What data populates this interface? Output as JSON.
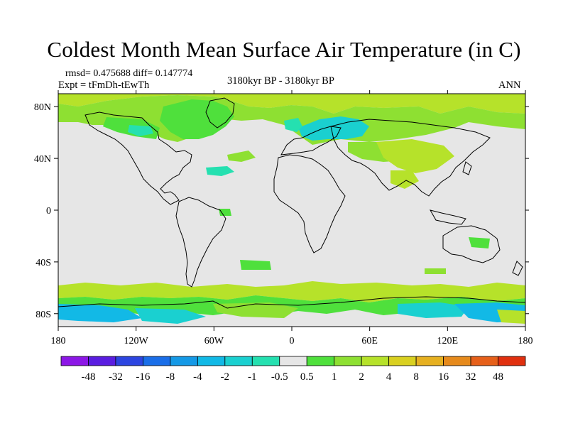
{
  "title": "Coldest Month Mean Surface Air Temperature (in C)",
  "stats": {
    "rmsd_label": "rmsd= 0.475688 diff= 0.147774"
  },
  "expt_label": "Expt = tFmDh-tEwTh",
  "period_label": "3180kyr BP - 3180kyr BP",
  "season_label": "ANN",
  "map": {
    "lon_range": [
      -180,
      180
    ],
    "lat_range": [
      -90,
      90
    ],
    "lon_ticks": [
      {
        "value": -180,
        "label": "180"
      },
      {
        "value": -120,
        "label": "120W"
      },
      {
        "value": -60,
        "label": "60W"
      },
      {
        "value": 0,
        "label": "0"
      },
      {
        "value": 60,
        "label": "60E"
      },
      {
        "value": 120,
        "label": "120E"
      },
      {
        "value": 180,
        "label": "180"
      }
    ],
    "lat_ticks": [
      {
        "value": 80,
        "label": "80N"
      },
      {
        "value": 40,
        "label": "40N"
      },
      {
        "value": 0,
        "label": "0"
      },
      {
        "value": -40,
        "label": "40S"
      },
      {
        "value": -80,
        "label": "80S"
      }
    ],
    "background_color": "#e6e6e6"
  },
  "colorbar": {
    "labels": [
      "-48",
      "-32",
      "-16",
      "-8",
      "-4",
      "-2",
      "-1",
      "-0.5",
      "0.5",
      "1",
      "2",
      "4",
      "8",
      "16",
      "32",
      "48"
    ],
    "colors": [
      "#8c17e6",
      "#5a1de0",
      "#2c45e0",
      "#1a6ee8",
      "#1599e6",
      "#12b9e6",
      "#1ad0d0",
      "#25e0b0",
      "#e6e6e6",
      "#4fe03c",
      "#8ee032",
      "#b6e22a",
      "#d9d020",
      "#e6b020",
      "#e68a1c",
      "#e6601a",
      "#e0300f"
    ]
  }
}
